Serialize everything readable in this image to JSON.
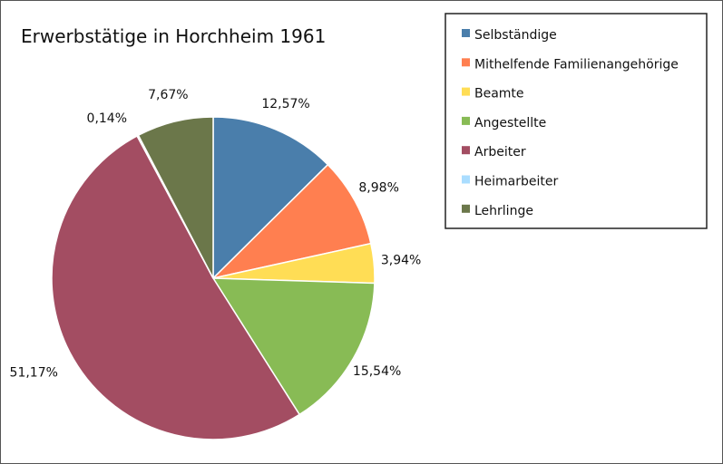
{
  "chart_data": {
    "type": "pie",
    "title": "Erwerbstätige in Horchheim  1961",
    "legend_position": "top-right",
    "slices": [
      {
        "name": "Selbständige",
        "value": 12.57,
        "label": "12,57%",
        "color": "#4a7eab"
      },
      {
        "name": "Mithelfende Familienangehörige",
        "value": 8.98,
        "label": "8,98%",
        "color": "#ff7f50"
      },
      {
        "name": "Beamte",
        "value": 3.94,
        "label": "3,94%",
        "color": "#ffdd55"
      },
      {
        "name": "Angestellte",
        "value": 15.54,
        "label": "15,54%",
        "color": "#88bb55"
      },
      {
        "name": "Arbeiter",
        "value": 51.17,
        "label": "51,17%",
        "color": "#a34d62"
      },
      {
        "name": "Heimarbeiter",
        "value": 0.14,
        "label": "0,14%",
        "color": "#aaddff"
      },
      {
        "name": "Lehrlinge",
        "value": 7.67,
        "label": "7,67%",
        "color": "#6b774a"
      }
    ]
  }
}
